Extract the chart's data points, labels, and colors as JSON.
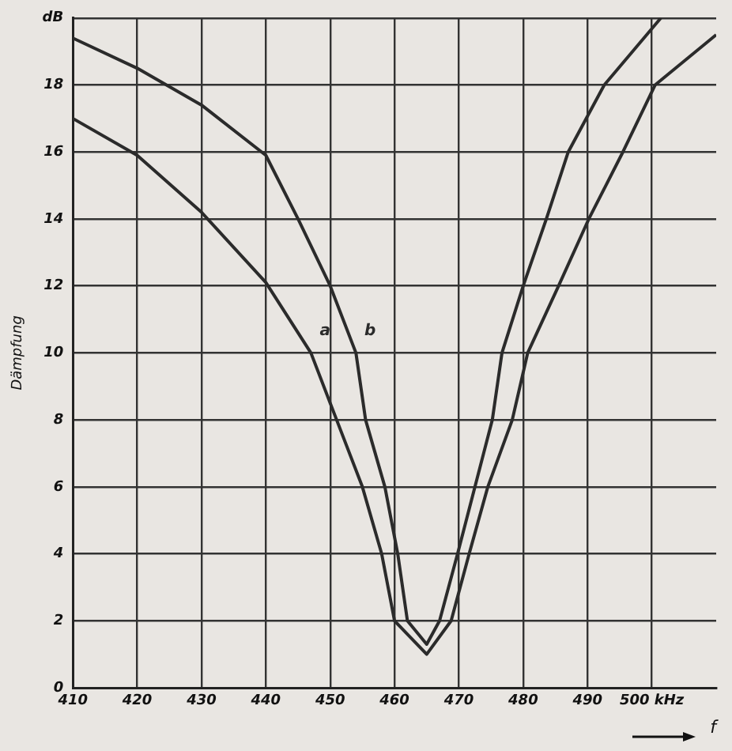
{
  "chart_data": {
    "type": "line",
    "xlabel": "f",
    "ylabel": "Dämpfung",
    "xlim": [
      410,
      510
    ],
    "xticks": [
      410,
      420,
      430,
      440,
      450,
      460,
      470,
      480,
      490,
      {
        "value": 500,
        "label": "500 kHz"
      }
    ],
    "ylim": [
      0,
      20
    ],
    "yticks": [
      0,
      2,
      4,
      6,
      8,
      10,
      12,
      14,
      16,
      18,
      {
        "value": 20,
        "label": "dB"
      }
    ],
    "grid": true,
    "marker": "none",
    "line_style": "solid",
    "legend": false,
    "series": [
      {
        "name": "a",
        "color": "#2b2b2b",
        "x": [
          410,
          420,
          430,
          440,
          447,
          451,
          455,
          458,
          460,
          465,
          468.8,
          471.6,
          474.5,
          478.3,
          480.7,
          485.5,
          490.2,
          495.5,
          500.5,
          510
        ],
        "values": [
          17,
          15.9,
          14.2,
          12.1,
          10,
          8,
          6,
          4,
          2,
          1,
          2,
          4,
          6,
          8,
          10,
          12,
          14,
          16,
          18,
          19.5
        ]
      },
      {
        "name": "b",
        "color": "#2b2b2b",
        "x": [
          410,
          420,
          430,
          440,
          445,
          450,
          454,
          455.5,
          458.5,
          460.5,
          462,
          465,
          467,
          469.8,
          472.5,
          475.2,
          476.7,
          480,
          483.6,
          487,
          492.6,
          501.4
        ],
        "values": [
          19.4,
          18.5,
          17.4,
          15.9,
          14,
          12,
          10,
          8,
          6,
          4,
          2,
          1.3,
          2,
          4,
          6,
          8,
          10,
          12,
          14,
          16,
          18,
          20
        ]
      }
    ]
  }
}
